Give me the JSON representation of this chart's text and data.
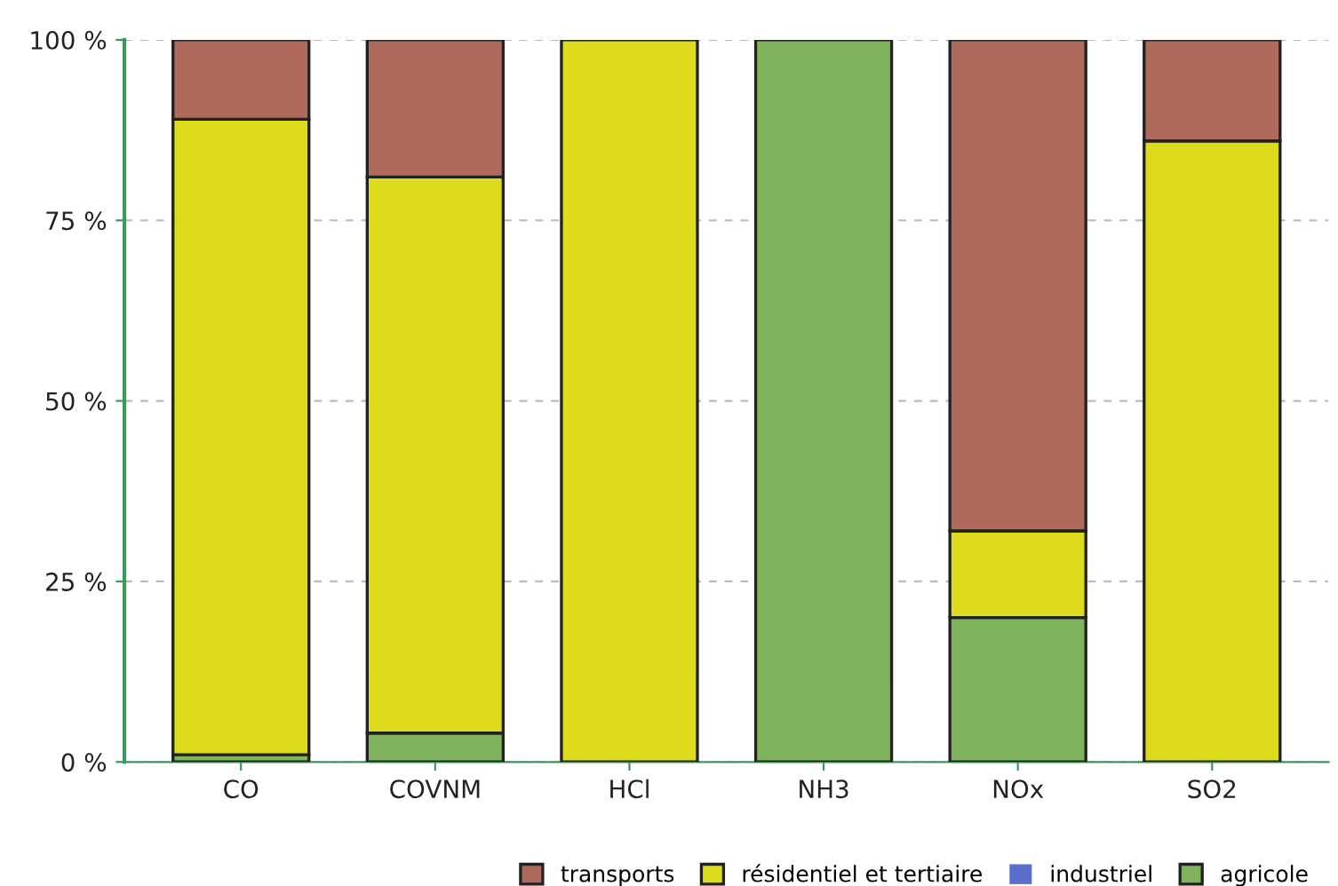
{
  "chart_data": {
    "type": "bar",
    "stacked": true,
    "categories": [
      "CO",
      "COVNM",
      "HCl",
      "NH3",
      "NOx",
      "SO2"
    ],
    "series": [
      {
        "name": "agricole",
        "color": "#80b45c",
        "values": [
          1,
          4,
          0,
          100,
          20,
          0
        ]
      },
      {
        "name": "industriel",
        "color": "#5a6ecc",
        "values": [
          0,
          0,
          0,
          0,
          0,
          0
        ]
      },
      {
        "name": "résidentiel et tertiaire",
        "color": "#dcdc1c",
        "values": [
          88,
          77,
          100,
          0,
          12,
          86
        ]
      },
      {
        "name": "transports",
        "color": "#b06a5c",
        "values": [
          11,
          19,
          0,
          0,
          68,
          14
        ]
      }
    ],
    "ylim": [
      0,
      100
    ],
    "yticks": [
      {
        "value": 0,
        "label": "0 %"
      },
      {
        "value": 25,
        "label": "25 %"
      },
      {
        "value": 50,
        "label": "50 %"
      },
      {
        "value": 75,
        "label": "75 %"
      },
      {
        "value": 100,
        "label": "100 %"
      }
    ],
    "grid": "y",
    "legend": "bottom"
  }
}
